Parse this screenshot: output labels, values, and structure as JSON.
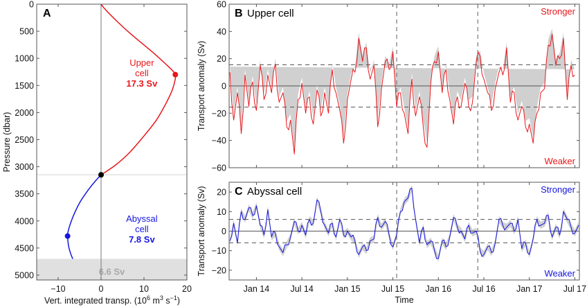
{
  "chart_data": [
    {
      "panel": "A",
      "type": "line",
      "panel_label": "A",
      "xlabel": "Vert. integrated transp. (10",
      "xlabel_sup1": "6",
      "xlabel_mid": " m",
      "xlabel_sup2": "3",
      "xlabel_mid2": " s",
      "xlabel_sup3": "−1",
      "xlabel_end": ")",
      "ylabel": "Pressure (dbar)",
      "xlim": [
        -15,
        20
      ],
      "ylim": [
        5090,
        0
      ],
      "xticks": [
        -10,
        0,
        10,
        20
      ],
      "xtick_labels": [
        "−10",
        "0",
        "10",
        "20"
      ],
      "yticks": [
        0,
        500,
        1000,
        1500,
        2000,
        2500,
        3000,
        3500,
        4000,
        4500,
        5000
      ],
      "ytick_labels": [
        "0",
        "500",
        "1000",
        "1500",
        "2000",
        "2500",
        "3000",
        "3500",
        "4000",
        "4500",
        "5000"
      ],
      "upper_cell": {
        "label_line1": "Upper",
        "label_line2": "cell",
        "value_label": "17.3 Sv",
        "color": "#e8161b",
        "max": {
          "x": 17.3,
          "p": 1300
        },
        "profile": [
          [
            0,
            0
          ],
          [
            1,
            100
          ],
          [
            3.5,
            300
          ],
          [
            6.5,
            520
          ],
          [
            9.5,
            720
          ],
          [
            12.5,
            920
          ],
          [
            15,
            1100
          ],
          [
            16.7,
            1230
          ],
          [
            17.3,
            1300
          ],
          [
            17.2,
            1420
          ],
          [
            16.4,
            1620
          ],
          [
            15,
            1850
          ],
          [
            12.8,
            2150
          ],
          [
            9.8,
            2450
          ],
          [
            6.5,
            2750
          ],
          [
            3.2,
            2980
          ],
          [
            0,
            3150
          ]
        ]
      },
      "abyssal_cell": {
        "label_line1": "Abyssal",
        "label_line2": "cell",
        "value_label": "7.8 Sv",
        "color": "#1515e0",
        "min": {
          "x": -7.8,
          "p": 4280
        },
        "profile": [
          [
            0,
            3150
          ],
          [
            -1.5,
            3280
          ],
          [
            -3.2,
            3450
          ],
          [
            -4.8,
            3640
          ],
          [
            -6.1,
            3840
          ],
          [
            -7.1,
            4040
          ],
          [
            -7.7,
            4200
          ],
          [
            -7.8,
            4280
          ],
          [
            -7.6,
            4450
          ],
          [
            -7.1,
            4600
          ],
          [
            -6.6,
            4700
          ]
        ]
      },
      "crossing_point": {
        "x": 0,
        "p": 3150
      },
      "bottom_region": {
        "from_p": 4700,
        "label": "6.6 Sv",
        "color": "#e0e0e0",
        "text_color": "#a8a8a8"
      }
    },
    {
      "panel": "B",
      "type": "line",
      "panel_label": "B",
      "title": "Upper cell",
      "ylabel": "Transport anomaly (Sv)",
      "ylim": [
        -60,
        60
      ],
      "yticks": [
        -60,
        -40,
        -20,
        0,
        20,
        40,
        60
      ],
      "ytick_labels": [
        "−60",
        "−40",
        "−20",
        "0",
        "20",
        "40",
        "60"
      ],
      "xlim_months_from_jan2014": [
        -3.6,
        42.6
      ],
      "threshold": 15.5,
      "stronger_label": "Stronger",
      "weaker_label": "Weaker",
      "color": "#e8161b",
      "band_color": "#c8c8c8",
      "series": [
        {
          "name": "Upper cell",
          "t": [
            -3.5,
            -3.0,
            -2.5,
            -2.0,
            -1.5,
            -1.0,
            -0.5,
            0.0,
            0.5,
            1.0,
            1.5,
            2.0,
            2.5,
            3.0,
            3.5,
            4.0,
            4.5,
            5.0,
            5.5,
            6.0,
            6.5,
            7.0,
            7.5,
            8.0,
            8.5,
            9.0,
            9.5,
            10.0,
            10.5,
            11.0,
            11.5,
            12.0,
            12.5,
            13.0,
            13.5,
            14.0,
            14.5,
            15.0,
            15.5,
            16.0,
            16.5,
            17.0,
            17.5,
            18.0,
            18.5,
            19.0,
            19.5,
            20.0,
            20.5,
            21.0,
            21.5,
            22.0,
            22.5,
            23.0,
            23.5,
            24.0,
            24.5,
            25.0,
            25.5,
            26.0,
            26.5,
            27.0,
            27.5,
            28.0,
            28.5,
            29.0,
            29.5,
            30.0,
            30.5,
            31.0,
            31.5,
            32.0,
            32.5,
            33.0,
            33.5,
            34.0,
            34.5,
            35.0,
            35.5,
            36.0,
            36.5,
            37.0,
            37.5,
            38.0,
            38.5,
            39.0,
            39.5,
            40.0,
            40.5,
            41.0,
            41.5,
            42.0,
            42.5
          ],
          "values": [
            10,
            -25,
            -5,
            -35,
            8,
            -15,
            3,
            -18,
            15,
            -10,
            8,
            -5,
            16,
            -12,
            -5,
            -30,
            -25,
            -50,
            -10,
            2,
            -20,
            -8,
            -28,
            -3,
            -22,
            -5,
            -20,
            12,
            -5,
            -18,
            -42,
            -10,
            5,
            10,
            35,
            18,
            28,
            5,
            15,
            -30,
            -2,
            18,
            12,
            25,
            -15,
            -5,
            -20,
            -35,
            5,
            -22,
            -8,
            -30,
            -45,
            2,
            18,
            25,
            -5,
            12,
            -10,
            -28,
            -8,
            -15,
            2,
            -15,
            -12,
            18,
            22,
            5,
            -5,
            -18,
            -2,
            10,
            8,
            28,
            -12,
            -5,
            -25,
            -15,
            -30,
            -28,
            -42,
            -20,
            -5,
            -2,
            30,
            38,
            15,
            20,
            35,
            -10,
            15,
            8
          ]
        }
      ],
      "x_date_ticks": [
        {
          "m": 0,
          "label": "Jan 14"
        },
        {
          "m": 6,
          "label": "Jul 14"
        },
        {
          "m": 12,
          "label": "Jan 15"
        },
        {
          "m": 18,
          "label": "Jul 15"
        },
        {
          "m": 24,
          "label": "Jan 16"
        },
        {
          "m": 30,
          "label": "Jul 16"
        },
        {
          "m": 36,
          "label": "Jan 17"
        },
        {
          "m": 42,
          "label": "Jul 17"
        }
      ],
      "event_lines_months": [
        18.5,
        29.2
      ]
    },
    {
      "panel": "C",
      "type": "line",
      "panel_label": "C",
      "title": "Abyssal cell",
      "ylabel": "Transport anomaly (Sv)",
      "xlabel": "Time",
      "ylim": [
        -25,
        25
      ],
      "yticks": [
        -20,
        -10,
        0,
        10,
        20
      ],
      "ytick_labels": [
        "−20",
        "−10",
        "0",
        "10",
        "20"
      ],
      "xlim_months_from_jan2014": [
        -3.6,
        42.6
      ],
      "threshold": 6,
      "stronger_label": "Stronger",
      "weaker_label": "Weaker",
      "color": "#1515e0",
      "band_color": "#c8c8c8",
      "series": [
        {
          "name": "Abyssal cell",
          "t": [
            -3.5,
            -3.0,
            -2.5,
            -2.0,
            -1.5,
            -1.0,
            -0.5,
            0.0,
            0.5,
            1.0,
            1.5,
            2.0,
            2.5,
            3.0,
            3.5,
            4.0,
            4.5,
            5.0,
            5.5,
            6.0,
            6.5,
            7.0,
            7.5,
            8.0,
            8.5,
            9.0,
            9.5,
            10.0,
            10.5,
            11.0,
            11.5,
            12.0,
            12.5,
            13.0,
            13.5,
            14.0,
            14.5,
            15.0,
            15.5,
            16.0,
            16.5,
            17.0,
            17.5,
            18.0,
            18.5,
            19.0,
            19.5,
            20.0,
            20.5,
            21.0,
            21.5,
            22.0,
            22.5,
            23.0,
            23.5,
            24.0,
            24.5,
            25.0,
            25.5,
            26.0,
            26.5,
            27.0,
            27.5,
            28.0,
            28.5,
            29.0,
            29.5,
            30.0,
            30.5,
            31.0,
            31.5,
            32.0,
            32.5,
            33.0,
            33.5,
            34.0,
            34.5,
            35.0,
            35.5,
            36.0,
            36.5,
            37.0,
            37.5,
            38.0,
            38.5,
            39.0,
            39.5,
            40.0,
            40.5,
            41.0,
            41.5,
            42.0,
            42.5
          ],
          "values": [
            -5,
            4,
            -6,
            10,
            6,
            12,
            8,
            13,
            3,
            -2,
            11,
            -3,
            -1,
            -8,
            -11,
            -7,
            -3,
            5,
            0,
            3,
            -2,
            6,
            4,
            16,
            10,
            3,
            -1,
            4,
            -3,
            6,
            -2,
            0,
            -3,
            -5,
            -12,
            -8,
            -10,
            -5,
            -4,
            7,
            2,
            5,
            -2,
            -8,
            -2,
            10,
            15,
            17,
            22,
            6,
            -6,
            2,
            -7,
            -5,
            -10,
            -14,
            -5,
            -8,
            -3,
            7,
            2,
            0,
            -4,
            3,
            -1,
            0,
            -10,
            -12,
            -8,
            -11,
            -6,
            6,
            3,
            2,
            4,
            0,
            6,
            -9,
            -6,
            -12,
            -4,
            6,
            3,
            4,
            8,
            -3,
            2,
            -2,
            10,
            6,
            2,
            -1,
            3,
            -5
          ]
        }
      ],
      "x_date_ticks": [
        {
          "m": 0,
          "label": "Jan 14"
        },
        {
          "m": 6,
          "label": "Jul 14"
        },
        {
          "m": 12,
          "label": "Jan 15"
        },
        {
          "m": 18,
          "label": "Jul 15"
        },
        {
          "m": 24,
          "label": "Jan 16"
        },
        {
          "m": 30,
          "label": "Jul 16"
        },
        {
          "m": 36,
          "label": "Jan 17"
        },
        {
          "m": 42,
          "label": "Jul 17"
        }
      ],
      "event_lines_months": [
        18.5,
        29.2
      ]
    }
  ]
}
